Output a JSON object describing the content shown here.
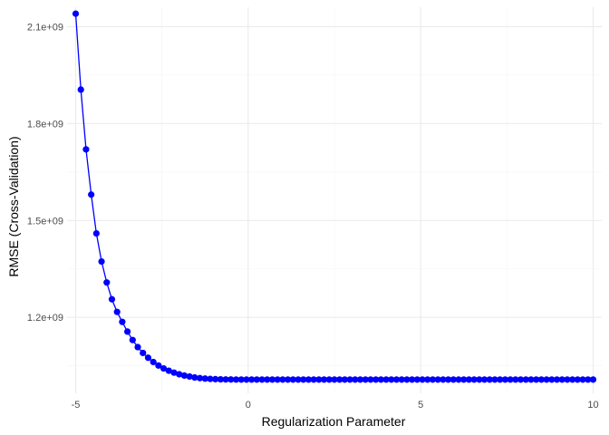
{
  "chart_data": {
    "type": "line",
    "xlabel": "Regularization Parameter",
    "ylabel": "RMSE (Cross-Validation)",
    "xlim": [
      -5.25,
      10.25
    ],
    "ylim": [
      965000000,
      2160000000
    ],
    "x_ticks": [
      -5,
      0,
      5,
      10
    ],
    "x_tick_labels": [
      "-5",
      "0",
      "5",
      "10"
    ],
    "y_ticks": [
      1200000000,
      1500000000,
      1800000000,
      2100000000
    ],
    "y_tick_labels": [
      "1.2e+09",
      "1.5e+09",
      "1.8e+09",
      "2.1e+09"
    ],
    "grid": true,
    "legend": "none",
    "series": [
      {
        "color": "#0000ff",
        "x": [
          -5,
          -4.85,
          -4.7,
          -4.55,
          -4.4,
          -4.25,
          -4.1,
          -3.95,
          -3.8,
          -3.65,
          -3.5,
          -3.35,
          -3.2,
          -3.05,
          -2.9,
          -2.75,
          -2.6,
          -2.45,
          -2.3,
          -2.15,
          -2,
          -1.85,
          -1.7,
          -1.55,
          -1.4,
          -1.25,
          -1.1,
          -0.95,
          -0.8,
          -0.65,
          -0.5,
          -0.35,
          -0.2,
          -0.05,
          0.1,
          0.25,
          0.4,
          0.55,
          0.7,
          0.85,
          1,
          1.15,
          1.3,
          1.45,
          1.6,
          1.75,
          1.9,
          2.05,
          2.2,
          2.35,
          2.5,
          2.65,
          2.8,
          2.95,
          3.1,
          3.25,
          3.4,
          3.55,
          3.7,
          3.85,
          4,
          4.15,
          4.3,
          4.45,
          4.6,
          4.75,
          4.9,
          5.05,
          5.2,
          5.35,
          5.5,
          5.65,
          5.8,
          5.95,
          6.1,
          6.25,
          6.4,
          6.55,
          6.7,
          6.85,
          7,
          7.15,
          7.3,
          7.45,
          7.6,
          7.75,
          7.9,
          8.05,
          8.2,
          8.35,
          8.5,
          8.65,
          8.8,
          8.95,
          9.1,
          9.25,
          9.4,
          9.55,
          9.7,
          9.85,
          10
        ],
        "y": [
          2140000000,
          1905000000,
          1720000000,
          1580000000,
          1460000000,
          1373000000,
          1308000000,
          1256000000,
          1217000000,
          1186000000,
          1156000000,
          1130000000,
          1108000000,
          1090000000,
          1075000000,
          1062000000,
          1051000000,
          1042000000,
          1035000000,
          1029000000,
          1024000000,
          1020000000,
          1017000000,
          1014000000,
          1012000000,
          1010500000,
          1009500000,
          1008800000,
          1008300000,
          1008000000,
          1007800000,
          1007600000,
          1007500000,
          1007500000,
          1007500000,
          1007500000,
          1007500000,
          1007500000,
          1007500000,
          1007500000,
          1007500000,
          1007500000,
          1007500000,
          1007500000,
          1007500000,
          1007500000,
          1007500000,
          1007500000,
          1007500000,
          1007500000,
          1007500000,
          1007500000,
          1007500000,
          1007500000,
          1007500000,
          1007500000,
          1007500000,
          1007500000,
          1007500000,
          1007500000,
          1007500000,
          1007500000,
          1007500000,
          1007500000,
          1007500000,
          1007500000,
          1007500000,
          1007500000,
          1007500000,
          1007500000,
          1007500000,
          1007500000,
          1007500000,
          1007500000,
          1007500000,
          1007500000,
          1007500000,
          1007500000,
          1007500000,
          1007500000,
          1007500000,
          1007500000,
          1007500000,
          1007500000,
          1007500000,
          1007500000,
          1007500000,
          1007500000,
          1007500000,
          1007500000,
          1007500000,
          1007500000,
          1007500000,
          1007500000,
          1007500000,
          1007500000,
          1007500000,
          1007500000,
          1007500000,
          1007500000,
          1007500000
        ]
      }
    ]
  }
}
